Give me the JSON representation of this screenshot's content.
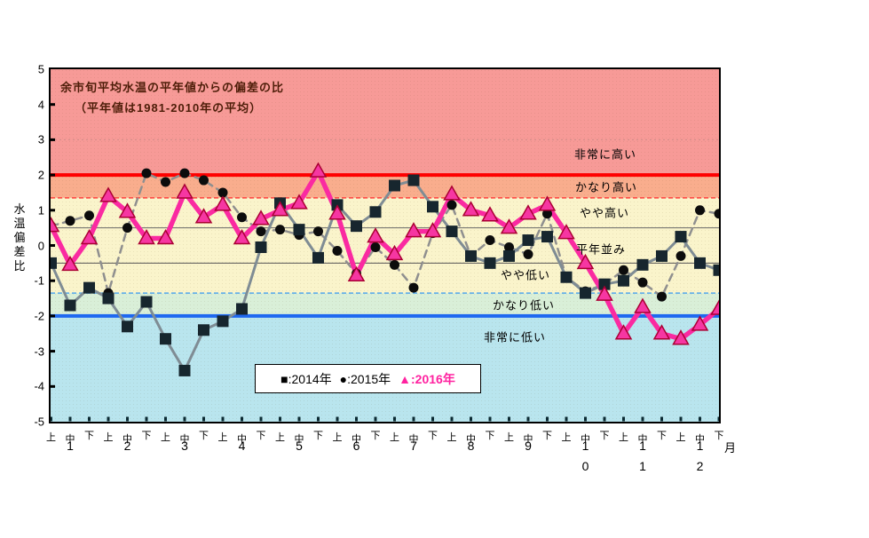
{
  "title": {
    "line1": "余市旬平均水温の平年値からの偏差の比",
    "line2": "（平年値は1981-2010年の平均）",
    "color": "#4d1d08"
  },
  "y_axis": {
    "title": "水温偏差比",
    "ticks": [
      "5",
      "4",
      "3",
      "2",
      "1",
      "0",
      "-1",
      "-2",
      "-3",
      "-4",
      "-5"
    ],
    "min": -5,
    "max": 5
  },
  "x_axis": {
    "period_labels": [
      "上",
      "中",
      "下"
    ],
    "months": [
      "1",
      "2",
      "3",
      "4",
      "5",
      "6",
      "7",
      "8",
      "9",
      "10",
      "11",
      "12"
    ],
    "unit_label": "月"
  },
  "legend": {
    "items": [
      {
        "symbol": "■",
        "label": ":2014年",
        "color": "#000000",
        "bold": false
      },
      {
        "symbol": "●",
        "label": ":2015年",
        "color": "#000000",
        "bold": false
      },
      {
        "symbol": "▲",
        "label": ":2016年",
        "color": "#ff22a0",
        "bold": true
      }
    ]
  },
  "chart_data": {
    "type": "line",
    "title": "余市旬平均水温の平年値からの偏差の比",
    "ylim": [
      -5,
      5
    ],
    "grid": "dotted line at +3",
    "legend_position": "inside bottom-center",
    "x": [
      "1月上",
      "1月中",
      "1月下",
      "2月上",
      "2月中",
      "2月下",
      "3月上",
      "3月中",
      "3月下",
      "4月上",
      "4月中",
      "4月下",
      "5月上",
      "5月中",
      "5月下",
      "6月上",
      "6月中",
      "6月下",
      "7月上",
      "7月中",
      "7月下",
      "8月上",
      "8月中",
      "8月下",
      "9月上",
      "9月中",
      "9月下",
      "10月上",
      "10月中",
      "10月下",
      "11月上",
      "11月中",
      "11月下",
      "12月上",
      "12月中",
      "12月下"
    ],
    "bands": [
      {
        "label": "非常に高い",
        "from": 2,
        "to": 5,
        "color": "#f79a97"
      },
      {
        "label": "かなり高い",
        "from": 1.35,
        "to": 2,
        "color": "#f9ad8d"
      },
      {
        "label": "やや高い",
        "from": 0.5,
        "to": 1.35,
        "color": "#faf4cb"
      },
      {
        "label": "平年並み",
        "from": -0.5,
        "to": 0.5,
        "color": "#faf4cb"
      },
      {
        "label": "やや低い",
        "from": -1.35,
        "to": -0.5,
        "color": "#faf4cb"
      },
      {
        "label": "かなり低い",
        "from": -2,
        "to": -1.35,
        "color": "#d9efd8"
      },
      {
        "label": "非常に低い",
        "from": -5,
        "to": -2,
        "color": "#b9e5ee"
      }
    ],
    "threshold_lines": [
      {
        "value": 3,
        "style": "dotted",
        "color": "#d08c88",
        "width": 1
      },
      {
        "value": 2,
        "style": "solid",
        "color": "#ff0000",
        "width": 4
      },
      {
        "value": 1.35,
        "style": "dashed",
        "color": "#ff4340",
        "width": 1.5
      },
      {
        "value": 0.5,
        "style": "solid",
        "color": "#6a6a6a",
        "width": 1
      },
      {
        "value": -0.5,
        "style": "solid",
        "color": "#555555",
        "width": 1
      },
      {
        "value": -1.35,
        "style": "dashed",
        "color": "#54a8ea",
        "width": 1.5
      },
      {
        "value": -2,
        "style": "solid",
        "color": "#1e68f0",
        "width": 4
      }
    ],
    "series": [
      {
        "name": "2014年",
        "marker": "square",
        "marker_color": "#17262e",
        "line_color": "#7f8c94",
        "line_style": "solid",
        "line_width": 3,
        "values": [
          -0.5,
          -1.7,
          -1.2,
          -1.5,
          -2.3,
          -1.6,
          -2.65,
          -3.55,
          -2.4,
          -2.15,
          -1.8,
          -0.05,
          1.2,
          0.45,
          -0.35,
          1.15,
          0.55,
          0.95,
          1.7,
          1.85,
          1.1,
          0.4,
          -0.3,
          -0.5,
          -0.3,
          0.15,
          0.25,
          -0.9,
          -1.35,
          -1.1,
          -1.0,
          -0.55,
          -0.3,
          0.25,
          -0.5,
          -0.7
        ]
      },
      {
        "name": "2015年",
        "marker": "circle",
        "marker_color": "#0c0c0c",
        "line_color": "#8f8f8f",
        "line_style": "dashed",
        "line_width": 2.5,
        "values": [
          0.55,
          0.7,
          0.85,
          -1.35,
          0.5,
          2.05,
          1.8,
          2.05,
          1.85,
          1.5,
          0.8,
          0.4,
          0.45,
          0.3,
          0.4,
          -0.15,
          -0.8,
          -0.05,
          -0.55,
          -1.2,
          0.35,
          1.15,
          -0.3,
          0.15,
          -0.05,
          -0.25,
          0.9,
          -0.9,
          -1.3,
          -1.1,
          -0.7,
          -1.05,
          -1.45,
          -0.3,
          1.0,
          0.9
        ]
      },
      {
        "name": "2016年",
        "marker": "triangle",
        "marker_color": "#f636a2",
        "marker_edge": "#aa0033",
        "line_color": "#fa2aa1",
        "line_style": "solid",
        "line_width": 5.5,
        "values": [
          0.55,
          -0.55,
          0.2,
          1.4,
          0.95,
          0.2,
          0.2,
          1.5,
          0.8,
          1.15,
          0.2,
          0.75,
          1.0,
          1.2,
          2.1,
          0.9,
          -0.85,
          0.25,
          -0.25,
          0.4,
          0.4,
          1.45,
          1.0,
          0.85,
          0.5,
          0.9,
          1.15,
          0.35,
          -0.5,
          -1.4,
          -2.5,
          -1.75,
          -2.5,
          -2.65,
          -2.25,
          -1.8
        ]
      }
    ]
  }
}
